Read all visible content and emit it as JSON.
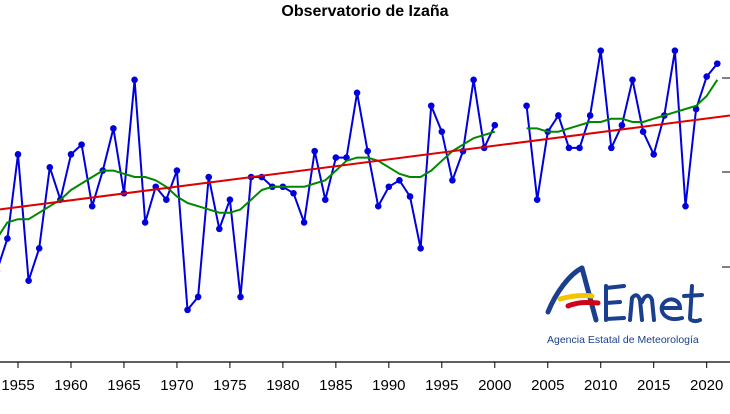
{
  "chart_data": {
    "type": "line",
    "title": "Observatorio de Izaña",
    "xlabel": "",
    "ylabel": "",
    "x_ticks": [
      1955,
      1960,
      1965,
      1970,
      1975,
      1980,
      1985,
      1990,
      1995,
      2000,
      2005,
      2010,
      2015,
      2020
    ],
    "x_range": [
      1953.3,
      2022.2
    ],
    "y_range": [
      0,
      100
    ],
    "grid": false,
    "legend": "none",
    "series": [
      {
        "kind": "observed",
        "color": "#0000dd",
        "x": [
          1953,
          1954,
          1955,
          1956,
          1957,
          1958,
          1959,
          1960,
          1961,
          1962,
          1963,
          1964,
          1965,
          1966,
          1967,
          1968,
          1969,
          1970,
          1971,
          1972,
          1973,
          1974,
          1975,
          1976,
          1977,
          1978,
          1979,
          1980,
          1981,
          1982,
          1983,
          1984,
          1985,
          1986,
          1987,
          1988,
          1989,
          1990,
          1991,
          1992,
          1993,
          1994,
          1995,
          1996,
          1997,
          1998,
          1999,
          2000,
          2001,
          2002,
          2003,
          2004,
          2005,
          2006,
          2007,
          2008,
          2009,
          2010,
          2011,
          2012,
          2013,
          2014,
          2015,
          2016,
          2017,
          2018,
          2019,
          2020,
          2021
        ],
        "y": [
          25,
          35,
          61,
          22,
          32,
          57,
          47,
          61,
          64,
          45,
          56,
          69,
          49,
          84,
          40,
          51,
          47,
          56,
          13,
          17,
          54,
          38,
          47,
          17,
          54,
          54,
          51,
          51,
          49,
          40,
          62,
          47,
          60,
          60,
          80,
          62,
          45,
          51,
          53,
          48,
          32,
          76,
          68,
          53,
          62,
          84,
          63,
          70,
          null,
          null,
          76,
          47,
          68,
          73,
          63,
          63,
          73,
          93,
          63,
          70,
          84,
          68,
          61,
          73,
          93,
          45,
          75,
          85,
          89
        ]
      },
      {
        "kind": "smoothed",
        "color": "#008800",
        "x": [
          1953,
          1954,
          1955,
          1956,
          1957,
          1958,
          1959,
          1960,
          1961,
          1962,
          1963,
          1964,
          1965,
          1966,
          1967,
          1968,
          1969,
          1970,
          1971,
          1972,
          1973,
          1974,
          1975,
          1976,
          1977,
          1978,
          1979,
          1980,
          1981,
          1982,
          1983,
          1984,
          1985,
          1986,
          1987,
          1988,
          1989,
          1990,
          1991,
          1992,
          1993,
          1994,
          1995,
          1996,
          1997,
          1998,
          1999,
          2000,
          2001,
          2002,
          2003,
          2004,
          2005,
          2006,
          2007,
          2008,
          2009,
          2010,
          2011,
          2012,
          2013,
          2014,
          2015,
          2016,
          2017,
          2018,
          2019,
          2020,
          2021
        ],
        "y": [
          35,
          40,
          41,
          41,
          43,
          45,
          47,
          50,
          52,
          54,
          56,
          56,
          55,
          54,
          54,
          53,
          51,
          48,
          46,
          45,
          44,
          43,
          43,
          44,
          47,
          50,
          51,
          51,
          51,
          51,
          52,
          53,
          56,
          59,
          60,
          60,
          59,
          57,
          55,
          54,
          54,
          56,
          59,
          62,
          64,
          66,
          67,
          68,
          null,
          null,
          69,
          69,
          68,
          68,
          69,
          70,
          71,
          71,
          72,
          72,
          71,
          71,
          72,
          73,
          74,
          75,
          76,
          79,
          84
        ]
      },
      {
        "kind": "linear trend",
        "color": "#dd0000",
        "x": [
          1953.3,
          2022.2
        ],
        "y": [
          44,
          73
        ]
      }
    ]
  },
  "logo": {
    "text": "AEmet",
    "caption": "Agencia Estatal de Meteorología",
    "colors": {
      "blue": "#1a3f8f",
      "yellow": "#f5c400",
      "red": "#d0021b"
    }
  }
}
